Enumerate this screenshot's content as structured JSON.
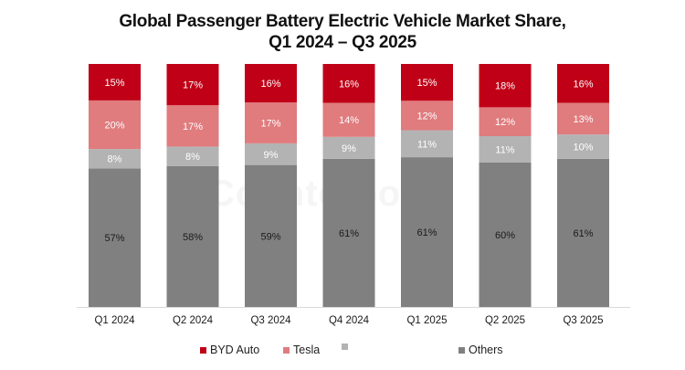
{
  "chart_data": {
    "type": "bar",
    "stacked": true,
    "title": "Global Passenger Battery Electric Vehicle Market Share,",
    "subtitle": "Q1 2024 – Q3 2025",
    "xlabel": "",
    "ylabel": "",
    "ylim": [
      0,
      100
    ],
    "grid": false,
    "legend_position": "bottom",
    "categories": [
      "Q1 2024",
      "Q2 2024",
      "Q3 2024",
      "Q4 2024",
      "Q1 2025",
      "Q2 2025",
      "Q3 2025"
    ],
    "series": [
      {
        "name": "Others",
        "color": "#808080",
        "label_color": "#1a1a1a",
        "values": [
          57,
          58,
          59,
          61,
          61,
          60,
          61
        ]
      },
      {
        "name": "",
        "color": "#b3b3b3",
        "label_color": "#ffffff",
        "values": [
          8,
          8,
          9,
          9,
          11,
          11,
          10
        ]
      },
      {
        "name": "Tesla",
        "color": "#e07b7e",
        "label_color": "#ffffff",
        "values": [
          20,
          17,
          17,
          14,
          12,
          12,
          13
        ]
      },
      {
        "name": "BYD Auto",
        "color": "#c00016",
        "label_color": "#ffffff",
        "values": [
          15,
          17,
          16,
          16,
          15,
          18,
          16
        ]
      }
    ],
    "legend_order": [
      "BYD Auto",
      "Tesla",
      "",
      "Others"
    ],
    "value_suffix": "%"
  },
  "watermark": "Counterpoint"
}
